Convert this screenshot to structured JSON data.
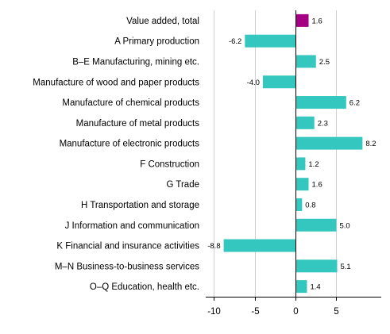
{
  "chart_data": {
    "type": "bar",
    "orientation": "horizontal",
    "categories": [
      "Value added, total",
      "A Primary production",
      "B–E Manufacturing, mining etc.",
      "Manufacture of wood and paper products",
      "Manufacture of chemical products",
      "Manufacture of metal products",
      "Manufacture of electronic products",
      "F Construction",
      "G Trade",
      "H Transportation and storage",
      "J Information and communication",
      "K Financial and insurance activities",
      "M–N Business-to-business services",
      "O–Q Education, health etc."
    ],
    "values": [
      1.6,
      -6.2,
      2.5,
      -4.0,
      6.2,
      2.3,
      8.2,
      1.2,
      1.6,
      0.8,
      5.0,
      -8.8,
      5.1,
      1.4
    ],
    "value_labels": [
      "1.6",
      "-6.2",
      "2.5",
      "-4.0",
      "6.2",
      "2.3",
      "8.2",
      "1.2",
      "1.6",
      "0.8",
      "5.0",
      "-8.8",
      "5.1",
      "1.4"
    ],
    "x_ticks": [
      -10,
      -5,
      0,
      5
    ],
    "x_tick_labels": [
      "-10",
      "-5",
      "0",
      "5"
    ],
    "xlim": [
      -11,
      10.5
    ],
    "grid": true,
    "colors": {
      "highlight": "#a50084",
      "bar": "#33c7bf"
    },
    "highlight_index": 0,
    "title": "",
    "xlabel": "",
    "ylabel": ""
  }
}
